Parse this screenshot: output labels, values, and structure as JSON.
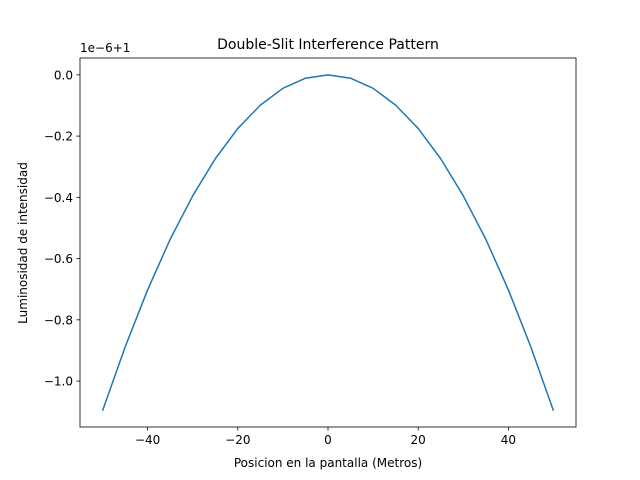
{
  "chart_data": {
    "type": "line",
    "title": "Double-Slit Interference Pattern",
    "xlabel": "Posicion en la pantalla (Metros)",
    "ylabel": "Luminosidad de intensidad",
    "y_offset_label": "1e−6+1",
    "xlim": [
      -55,
      55
    ],
    "ylim": [
      -1.15,
      0.055
    ],
    "x_ticks": [
      -40,
      -20,
      0,
      20,
      40
    ],
    "x_tick_labels": [
      "−40",
      "−20",
      "0",
      "20",
      "40"
    ],
    "y_ticks": [
      0.0,
      -0.2,
      -0.4,
      -0.6,
      -0.8,
      -1.0
    ],
    "y_tick_labels": [
      "0.0",
      "−0.2",
      "−0.4",
      "−0.6",
      "−0.8",
      "−1.0"
    ],
    "grid": false,
    "series": [
      {
        "color": "#1f77b4",
        "x": [
          -50,
          -45,
          -40,
          -35,
          -30,
          -25,
          -20,
          -15,
          -10,
          -5,
          0,
          5,
          10,
          15,
          20,
          25,
          30,
          35,
          40,
          45,
          50
        ],
        "y": [
          -1.097,
          -0.889,
          -0.702,
          -0.537,
          -0.395,
          -0.274,
          -0.175,
          -0.099,
          -0.044,
          -0.011,
          0.0,
          -0.011,
          -0.044,
          -0.099,
          -0.175,
          -0.274,
          -0.395,
          -0.537,
          -0.702,
          -0.889,
          -1.097
        ]
      }
    ]
  }
}
